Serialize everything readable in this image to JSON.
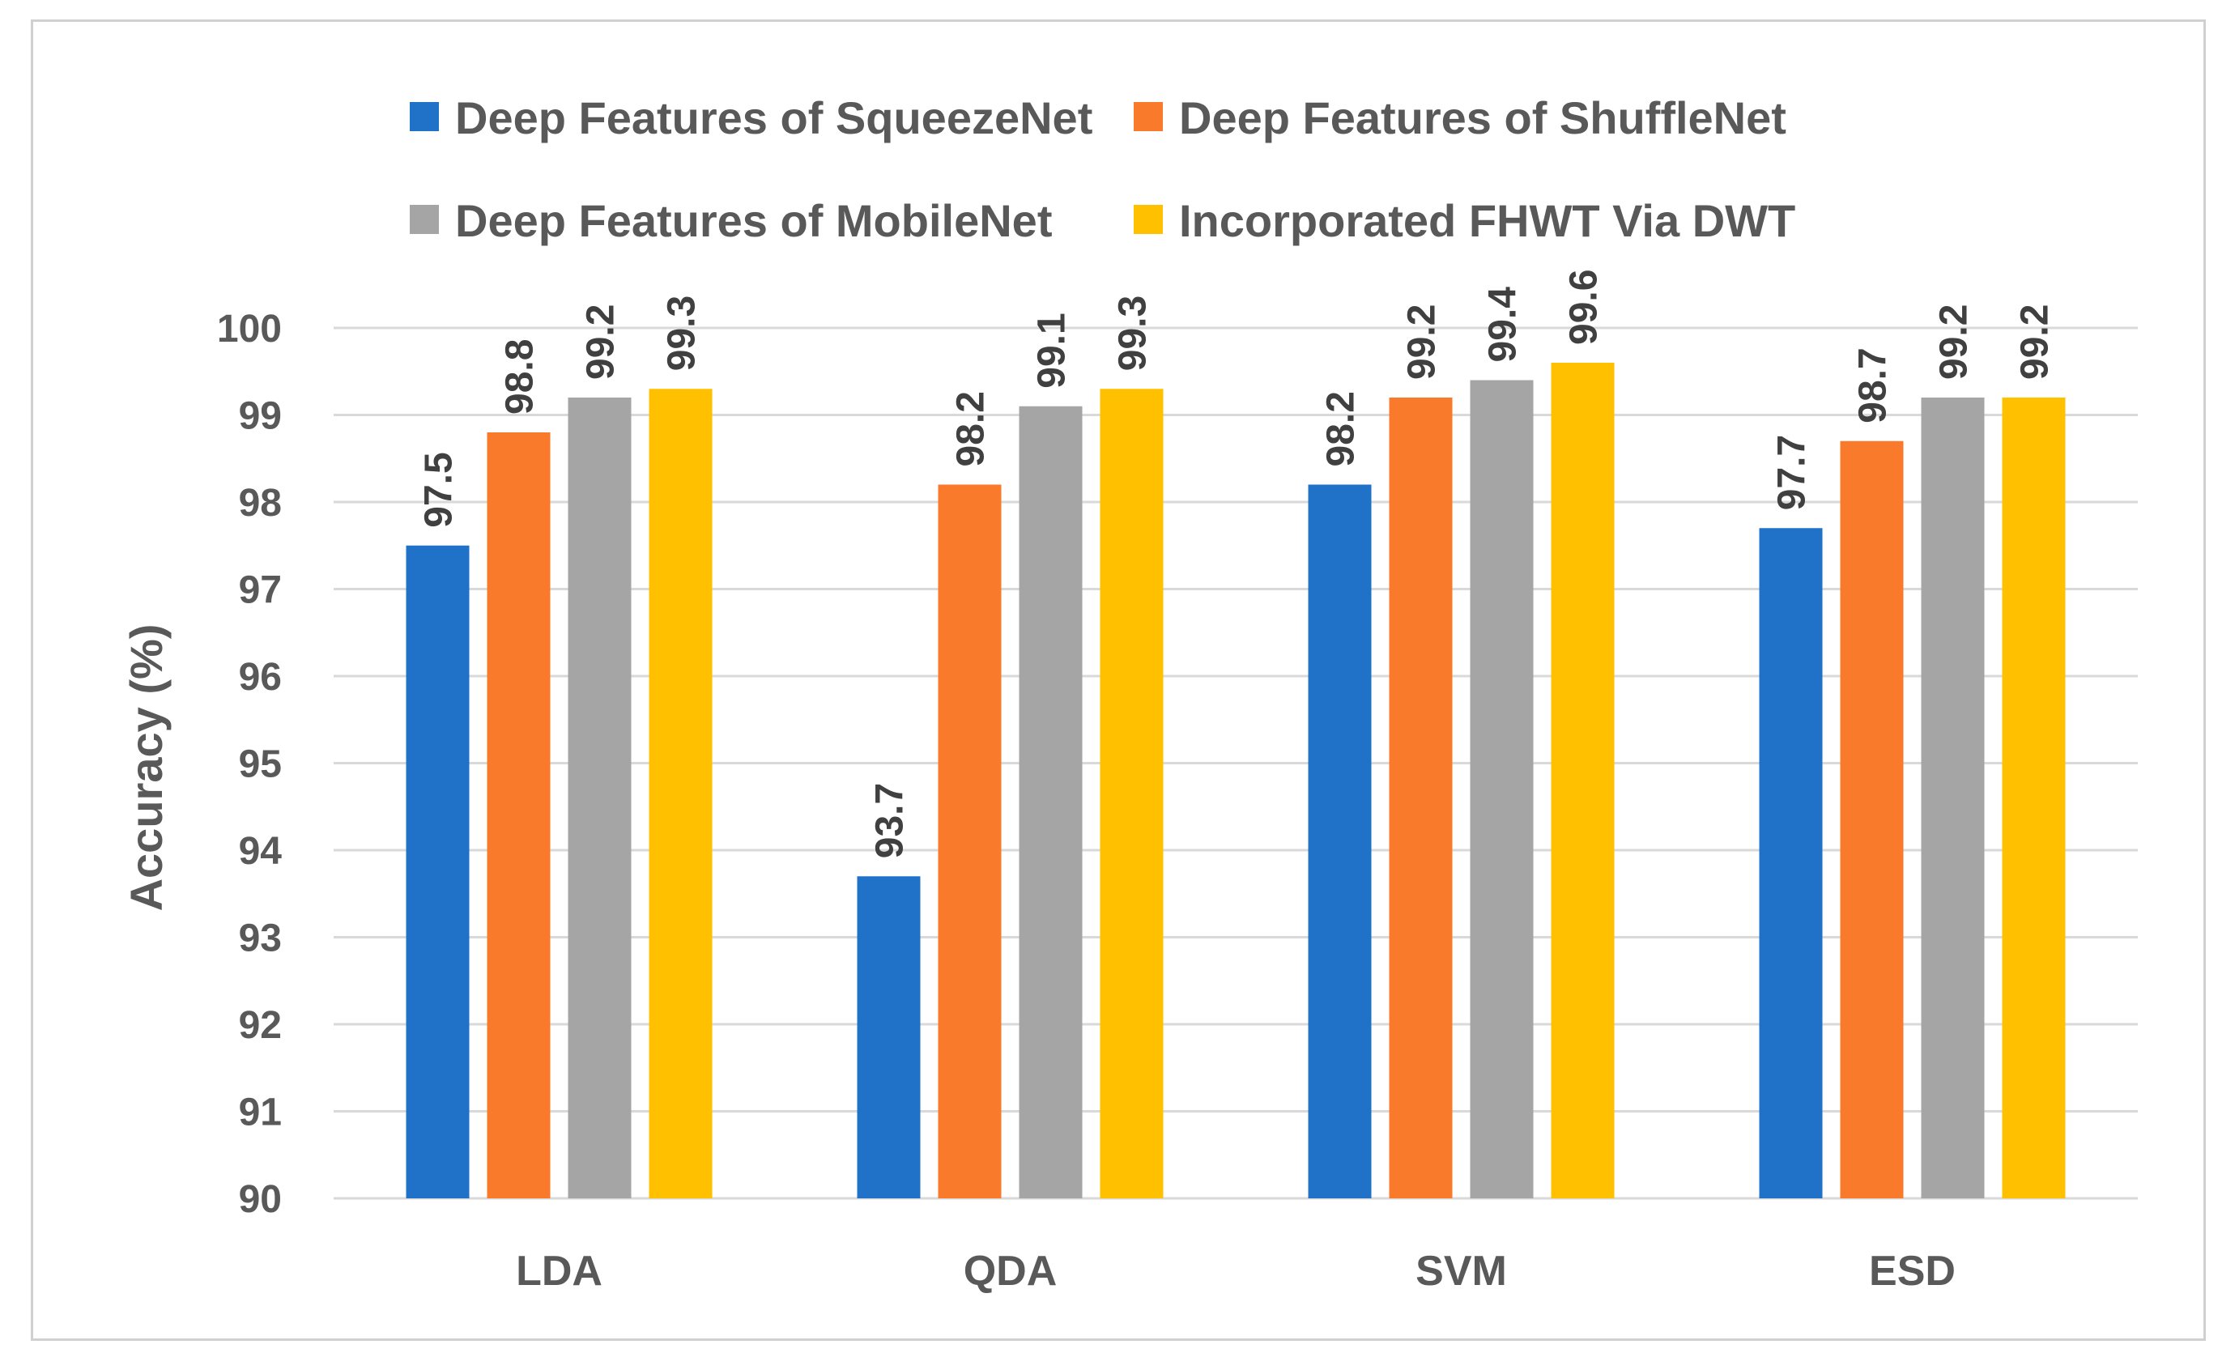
{
  "chart_data": {
    "type": "bar",
    "title": "",
    "xlabel": "",
    "ylabel": "Accuracy (%)",
    "ylim": [
      90,
      100
    ],
    "yticks": [
      90,
      91,
      92,
      93,
      94,
      95,
      96,
      97,
      98,
      99,
      100
    ],
    "grid": true,
    "legend_position": "top",
    "categories": [
      "LDA",
      "QDA",
      "SVM",
      "ESD"
    ],
    "series": [
      {
        "name": "Deep Features of SqueezeNet",
        "color": "#1f72c8",
        "values": [
          97.5,
          93.7,
          98.2,
          97.7
        ]
      },
      {
        "name": "Deep Features of ShuffleNet",
        "color": "#f97a2a",
        "values": [
          98.8,
          98.2,
          99.2,
          98.7
        ]
      },
      {
        "name": "Deep Features of MobileNet",
        "color": "#a5a5a5",
        "values": [
          99.2,
          99.1,
          99.4,
          99.2
        ]
      },
      {
        "name": "Incorporated FHWT Via DWT",
        "color": "#ffc000",
        "values": [
          99.3,
          99.3,
          99.6,
          99.2
        ]
      }
    ]
  }
}
